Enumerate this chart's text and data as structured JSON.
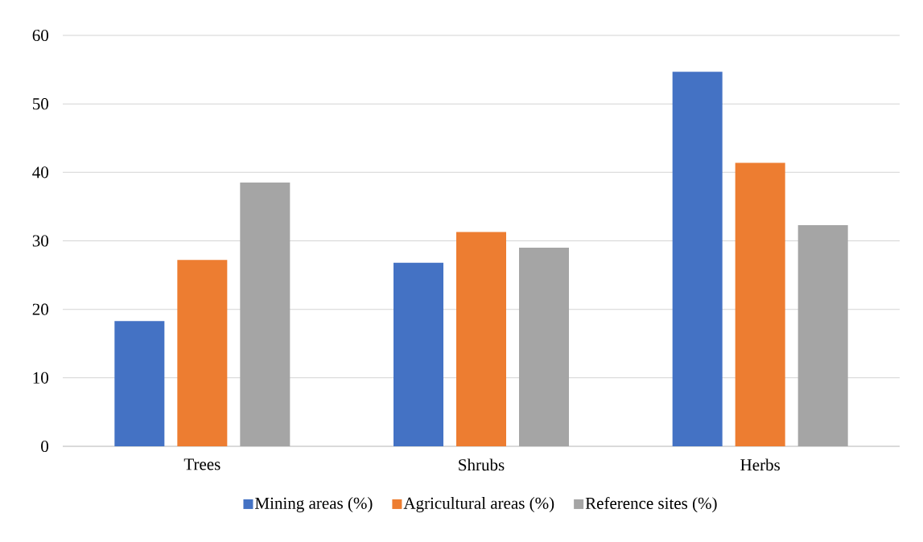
{
  "chart_data": {
    "type": "bar",
    "categories": [
      "Trees",
      "Shrubs",
      "Herbs"
    ],
    "series": [
      {
        "name": "Mining areas (%)",
        "color": "#4472c4",
        "values": [
          18.3,
          26.8,
          54.7
        ]
      },
      {
        "name": "Agricultural areas (%)",
        "color": "#ed7d31",
        "values": [
          27.2,
          31.3,
          41.4
        ]
      },
      {
        "name": "Reference sites (%)",
        "color": "#a5a5a5",
        "values": [
          38.5,
          29.0,
          32.3
        ]
      }
    ],
    "ylim": [
      0,
      60
    ],
    "yticks": [
      0,
      10,
      20,
      30,
      40,
      50,
      60
    ],
    "grid": "y",
    "legend": "bottom"
  }
}
